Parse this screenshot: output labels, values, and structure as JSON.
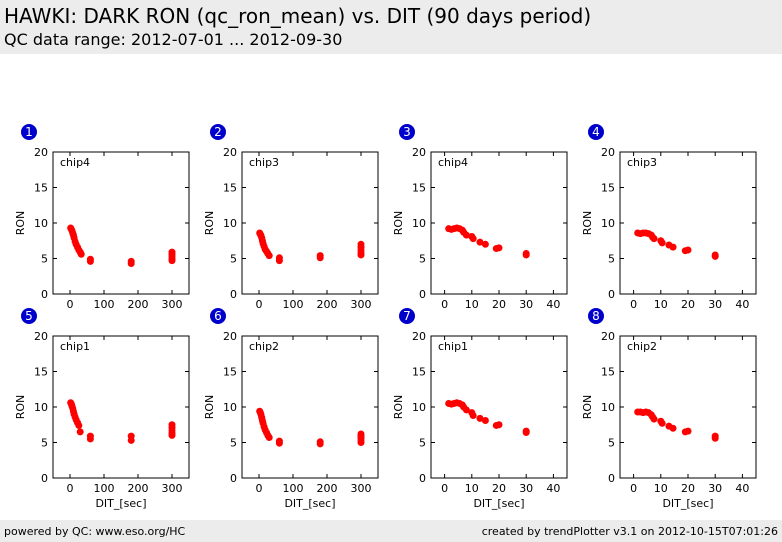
{
  "header": {
    "title": "HAWKI: DARK RON (qc_ron_mean) vs. DIT (90 days period)",
    "subtitle": "QC data range: 2012-07-01 ... 2012-09-30"
  },
  "footer": {
    "left": "powered by QC: www.eso.org/HC",
    "right": "created by trendPlotter v3.1 on 2012-10-15T07:01:26"
  },
  "colors": {
    "marker": "#ff0000",
    "badge": "#0000cc",
    "band": "#ececec"
  },
  "chart_data": [
    {
      "type": "scatter",
      "index": "1",
      "chip": "chip4",
      "xlabel": "",
      "ylabel": "RON",
      "xlim": [
        -50,
        350
      ],
      "ylim": [
        0,
        20
      ],
      "xticks": [
        0,
        100,
        200,
        300
      ],
      "yticks": [
        0,
        5,
        10,
        15,
        20
      ],
      "points": [
        [
          2,
          9.3
        ],
        [
          4,
          9.1
        ],
        [
          6,
          8.9
        ],
        [
          8,
          8.6
        ],
        [
          10,
          8.3
        ],
        [
          12,
          7.9
        ],
        [
          15,
          7.4
        ],
        [
          18,
          7.0
        ],
        [
          22,
          6.6
        ],
        [
          26,
          6.2
        ],
        [
          30,
          5.9
        ],
        [
          33,
          5.6
        ],
        [
          60,
          4.9
        ],
        [
          60,
          4.6
        ],
        [
          180,
          4.6
        ],
        [
          180,
          4.3
        ],
        [
          300,
          5.9
        ],
        [
          300,
          5.6
        ],
        [
          300,
          5.3
        ],
        [
          300,
          5.0
        ],
        [
          300,
          4.7
        ]
      ]
    },
    {
      "type": "scatter",
      "index": "2",
      "chip": "chip3",
      "xlabel": "",
      "ylabel": "RON",
      "xlim": [
        -50,
        350
      ],
      "ylim": [
        0,
        20
      ],
      "xticks": [
        0,
        100,
        200,
        300
      ],
      "yticks": [
        0,
        5,
        10,
        15,
        20
      ],
      "points": [
        [
          2,
          8.6
        ],
        [
          4,
          8.4
        ],
        [
          6,
          8.2
        ],
        [
          8,
          7.9
        ],
        [
          10,
          7.5
        ],
        [
          12,
          7.1
        ],
        [
          15,
          6.7
        ],
        [
          18,
          6.3
        ],
        [
          22,
          6.0
        ],
        [
          26,
          5.7
        ],
        [
          30,
          5.4
        ],
        [
          60,
          5.1
        ],
        [
          60,
          4.7
        ],
        [
          180,
          5.4
        ],
        [
          180,
          5.1
        ],
        [
          300,
          7.0
        ],
        [
          300,
          6.6
        ],
        [
          300,
          6.2
        ],
        [
          300,
          5.8
        ],
        [
          300,
          5.5
        ]
      ]
    },
    {
      "type": "scatter",
      "index": "3",
      "chip": "chip4",
      "xlabel": "",
      "ylabel": "RON",
      "xlim": [
        -5,
        45
      ],
      "ylim": [
        0,
        20
      ],
      "xticks": [
        0,
        10,
        20,
        30,
        40
      ],
      "yticks": [
        0,
        5,
        10,
        15,
        20
      ],
      "points": [
        [
          1.5,
          9.2
        ],
        [
          2.5,
          9.1
        ],
        [
          3.5,
          9.2
        ],
        [
          4.5,
          9.3
        ],
        [
          5.5,
          9.2
        ],
        [
          6.5,
          9.0
        ],
        [
          7,
          8.7
        ],
        [
          8,
          8.3
        ],
        [
          10,
          8.1
        ],
        [
          10.5,
          7.8
        ],
        [
          13,
          7.3
        ],
        [
          15,
          7.0
        ],
        [
          19,
          6.4
        ],
        [
          20,
          6.5
        ],
        [
          30,
          5.7
        ],
        [
          30,
          5.5
        ]
      ]
    },
    {
      "type": "scatter",
      "index": "4",
      "chip": "chip3",
      "xlabel": "",
      "ylabel": "RON",
      "xlim": [
        -5,
        45
      ],
      "ylim": [
        0,
        20
      ],
      "xticks": [
        0,
        10,
        20,
        30,
        40
      ],
      "yticks": [
        0,
        5,
        10,
        15,
        20
      ],
      "points": [
        [
          1.5,
          8.6
        ],
        [
          2.5,
          8.5
        ],
        [
          3.5,
          8.6
        ],
        [
          4.5,
          8.6
        ],
        [
          5.5,
          8.5
        ],
        [
          6.5,
          8.3
        ],
        [
          7,
          8.0
        ],
        [
          7.5,
          7.8
        ],
        [
          10,
          7.5
        ],
        [
          10.5,
          7.2
        ],
        [
          13,
          6.9
        ],
        [
          14.5,
          6.6
        ],
        [
          19,
          6.1
        ],
        [
          20,
          6.2
        ],
        [
          30,
          5.5
        ],
        [
          30,
          5.3
        ]
      ]
    },
    {
      "type": "scatter",
      "index": "5",
      "chip": "chip1",
      "xlabel": "DIT_[sec]",
      "ylabel": "RON",
      "xlim": [
        -50,
        350
      ],
      "ylim": [
        0,
        20
      ],
      "xticks": [
        0,
        100,
        200,
        300
      ],
      "yticks": [
        0,
        5,
        10,
        15,
        20
      ],
      "points": [
        [
          2,
          10.6
        ],
        [
          4,
          10.4
        ],
        [
          6,
          10.1
        ],
        [
          8,
          9.8
        ],
        [
          10,
          9.4
        ],
        [
          12,
          9.0
        ],
        [
          15,
          8.6
        ],
        [
          18,
          8.2
        ],
        [
          22,
          7.8
        ],
        [
          26,
          7.4
        ],
        [
          30,
          6.5
        ],
        [
          60,
          5.9
        ],
        [
          60,
          5.5
        ],
        [
          180,
          5.9
        ],
        [
          180,
          5.3
        ],
        [
          300,
          7.5
        ],
        [
          300,
          7.1
        ],
        [
          300,
          6.7
        ],
        [
          300,
          6.3
        ],
        [
          300,
          6.0
        ]
      ]
    },
    {
      "type": "scatter",
      "index": "6",
      "chip": "chip2",
      "xlabel": "DIT_[sec]",
      "ylabel": "RON",
      "xlim": [
        -50,
        350
      ],
      "ylim": [
        0,
        20
      ],
      "xticks": [
        0,
        100,
        200,
        300
      ],
      "yticks": [
        0,
        5,
        10,
        15,
        20
      ],
      "points": [
        [
          2,
          9.4
        ],
        [
          4,
          9.2
        ],
        [
          6,
          8.9
        ],
        [
          8,
          8.5
        ],
        [
          10,
          8.1
        ],
        [
          12,
          7.7
        ],
        [
          15,
          7.2
        ],
        [
          18,
          6.8
        ],
        [
          22,
          6.4
        ],
        [
          26,
          6.0
        ],
        [
          30,
          5.7
        ],
        [
          60,
          5.2
        ],
        [
          60,
          4.9
        ],
        [
          180,
          5.1
        ],
        [
          180,
          4.8
        ],
        [
          300,
          6.2
        ],
        [
          300,
          5.9
        ],
        [
          300,
          5.6
        ],
        [
          300,
          5.3
        ],
        [
          300,
          5.0
        ]
      ]
    },
    {
      "type": "scatter",
      "index": "7",
      "chip": "chip1",
      "xlabel": "DIT_[sec]",
      "ylabel": "RON",
      "xlim": [
        -5,
        45
      ],
      "ylim": [
        0,
        20
      ],
      "xticks": [
        0,
        10,
        20,
        30,
        40
      ],
      "yticks": [
        0,
        5,
        10,
        15,
        20
      ],
      "points": [
        [
          1.5,
          10.5
        ],
        [
          2.5,
          10.4
        ],
        [
          3.5,
          10.5
        ],
        [
          4.5,
          10.6
        ],
        [
          5.5,
          10.5
        ],
        [
          6.5,
          10.3
        ],
        [
          7,
          10.0
        ],
        [
          8,
          9.6
        ],
        [
          10,
          9.2
        ],
        [
          10.5,
          8.8
        ],
        [
          13,
          8.4
        ],
        [
          15,
          8.1
        ],
        [
          19,
          7.4
        ],
        [
          20,
          7.5
        ],
        [
          30,
          6.6
        ],
        [
          30,
          6.4
        ]
      ]
    },
    {
      "type": "scatter",
      "index": "8",
      "chip": "chip2",
      "xlabel": "DIT_[sec]",
      "ylabel": "RON",
      "xlim": [
        -5,
        45
      ],
      "ylim": [
        0,
        20
      ],
      "xticks": [
        0,
        10,
        20,
        30,
        40
      ],
      "yticks": [
        0,
        5,
        10,
        15,
        20
      ],
      "points": [
        [
          1.5,
          9.3
        ],
        [
          2.5,
          9.3
        ],
        [
          3.5,
          9.2
        ],
        [
          4.5,
          9.3
        ],
        [
          5.5,
          9.2
        ],
        [
          6.5,
          8.9
        ],
        [
          7,
          8.6
        ],
        [
          7.5,
          8.3
        ],
        [
          10,
          8.0
        ],
        [
          10.5,
          7.7
        ],
        [
          13,
          7.3
        ],
        [
          14.5,
          7.0
        ],
        [
          19,
          6.5
        ],
        [
          20,
          6.6
        ],
        [
          30,
          5.9
        ],
        [
          30,
          5.6
        ]
      ]
    }
  ]
}
